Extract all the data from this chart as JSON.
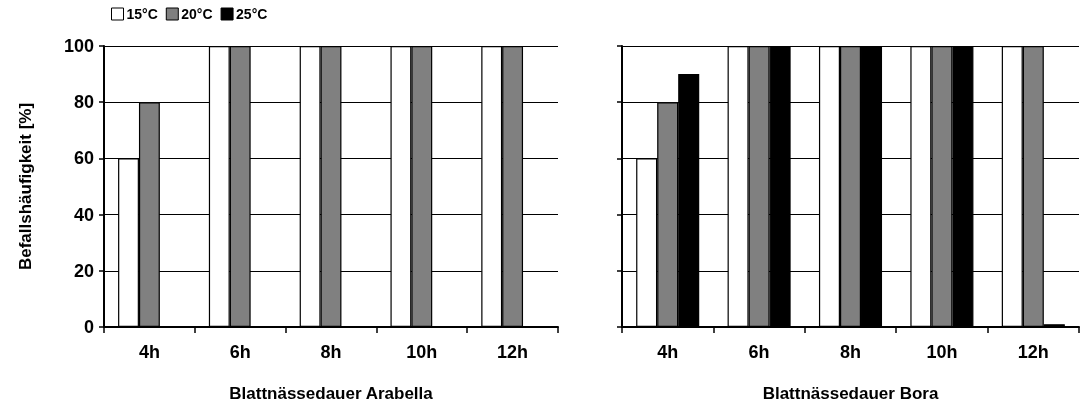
{
  "chart_data": [
    {
      "type": "bar",
      "categories": [
        "4h",
        "6h",
        "8h",
        "10h",
        "12h"
      ],
      "xlabel": "Blattnässedauer Arabella",
      "ylabel": "Befallshäufigkeit [%]",
      "ylim": [
        0,
        100
      ],
      "yticks": [
        0,
        20,
        40,
        60,
        80,
        100
      ],
      "grid": "y",
      "legend": "top left",
      "series": [
        {
          "name": "15°C",
          "color": "#ffffff",
          "values": [
            60,
            100,
            100,
            100,
            100
          ]
        },
        {
          "name": "20°C",
          "color": "#808080",
          "values": [
            80,
            100,
            100,
            100,
            100
          ]
        },
        {
          "name": "25°C",
          "color": "#000000",
          "values": [
            0,
            0,
            0,
            0,
            0
          ]
        }
      ]
    },
    {
      "type": "bar",
      "categories": [
        "4h",
        "6h",
        "8h",
        "10h",
        "12h"
      ],
      "xlabel": "Blattnässedauer Bora",
      "ylim": [
        0,
        100
      ],
      "yticks": [
        0,
        20,
        40,
        60,
        80,
        100
      ],
      "grid": "y",
      "tick_labels": "x",
      "series": [
        {
          "color": "#ffffff",
          "values": [
            60,
            100,
            100,
            100,
            100
          ]
        },
        {
          "color": "#808080",
          "values": [
            80,
            100,
            100,
            100,
            100
          ]
        },
        {
          "color": "#000000",
          "values": [
            90,
            100,
            100,
            100,
            1
          ]
        }
      ]
    }
  ]
}
